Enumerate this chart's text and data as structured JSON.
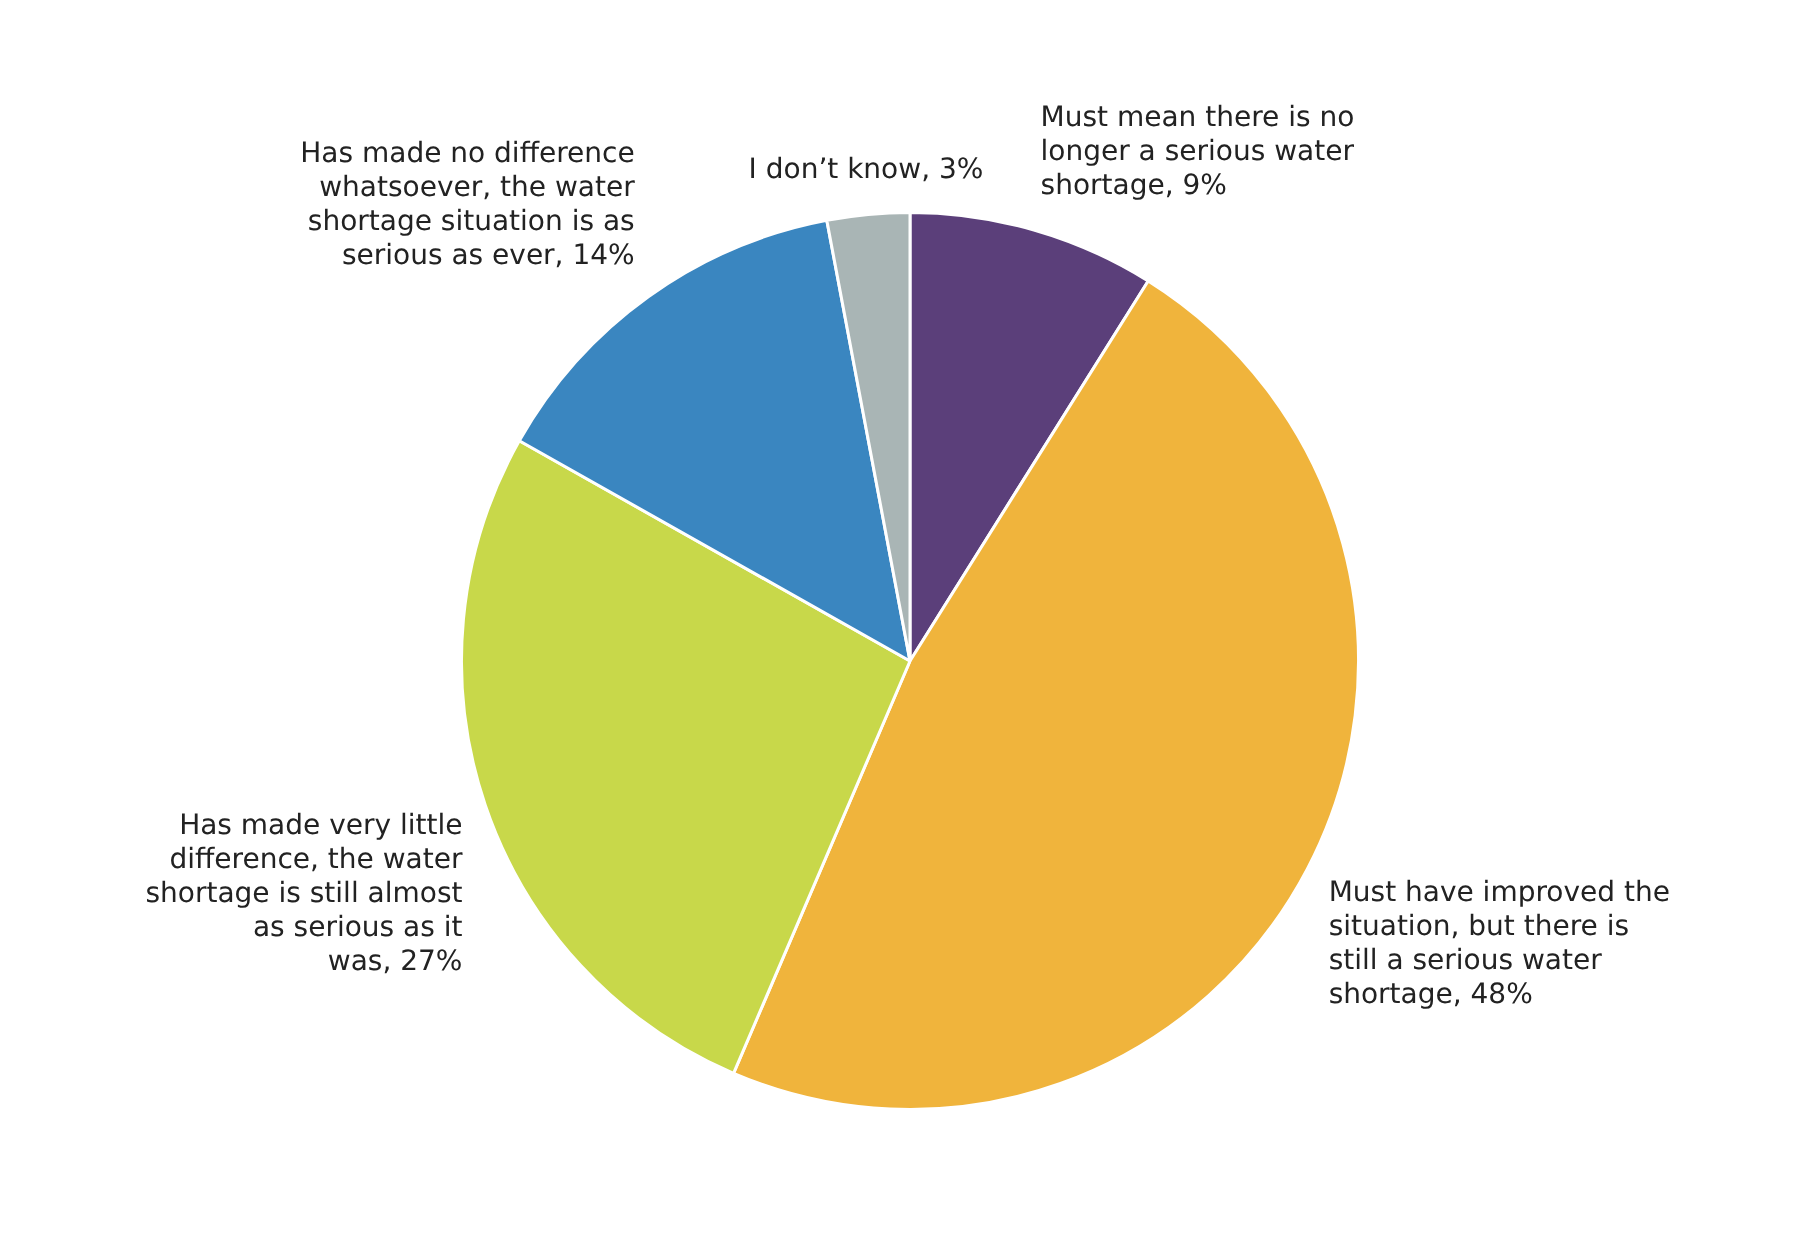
{
  "chart_data": {
    "type": "pie",
    "categories": [
      "Must mean there is no longer a serious water shortage",
      "Must have improved the situation, but there is still a serious water shortage",
      "Has made very little difference, the water shortage is still almost as serious as it was",
      "Has made no difference whatsoever, the water shortage situation is as serious as ever",
      "I don’t know"
    ],
    "values": [
      9,
      48,
      27,
      14,
      3
    ],
    "colors": [
      "#5b3f7a",
      "#f0b43c",
      "#c8d84a",
      "#3a86c0",
      "#a9b5b5"
    ],
    "value_labels": [
      "9%",
      "48%",
      "27%",
      "14%",
      "3%"
    ],
    "legend": false
  }
}
